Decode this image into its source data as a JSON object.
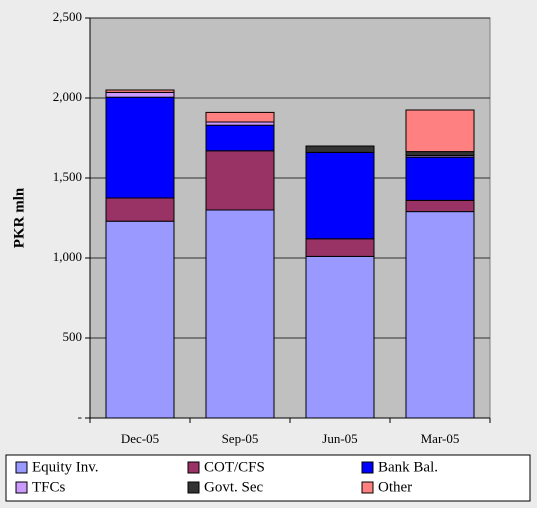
{
  "chart_data": {
    "type": "stacked_bar",
    "y_label": "PKR mln",
    "categories": [
      "Dec-05",
      "Sep-05",
      "Jun-05",
      "Mar-05"
    ],
    "series": [
      {
        "name": "Equity Inv.",
        "color": "#9999ff",
        "values": [
          1230,
          1300,
          1010,
          1290
        ]
      },
      {
        "name": "COT/CFS",
        "color": "#993366",
        "values": [
          145,
          370,
          110,
          70
        ]
      },
      {
        "name": "Bank Bal.",
        "color": "#0000ff",
        "values": [
          630,
          160,
          540,
          270
        ]
      },
      {
        "name": "TFCs",
        "color": "#cc99ff",
        "values": [
          30,
          20,
          0,
          10
        ]
      },
      {
        "name": "Govt. Sec",
        "color": "#333333",
        "values": [
          0,
          0,
          40,
          25
        ]
      },
      {
        "name": "Other",
        "color": "#ff8080",
        "values": [
          15,
          60,
          0,
          260
        ]
      }
    ],
    "ylim": [
      0,
      2500
    ],
    "yticks": [
      {
        "value": 0,
        "label": "-"
      },
      500,
      {
        "value": 1000,
        "label": "1,000"
      },
      {
        "value": 1500,
        "label": "1,500"
      },
      {
        "value": 2000,
        "label": "2,000"
      },
      {
        "value": 2500,
        "label": "2,500"
      }
    ],
    "grid": true
  }
}
